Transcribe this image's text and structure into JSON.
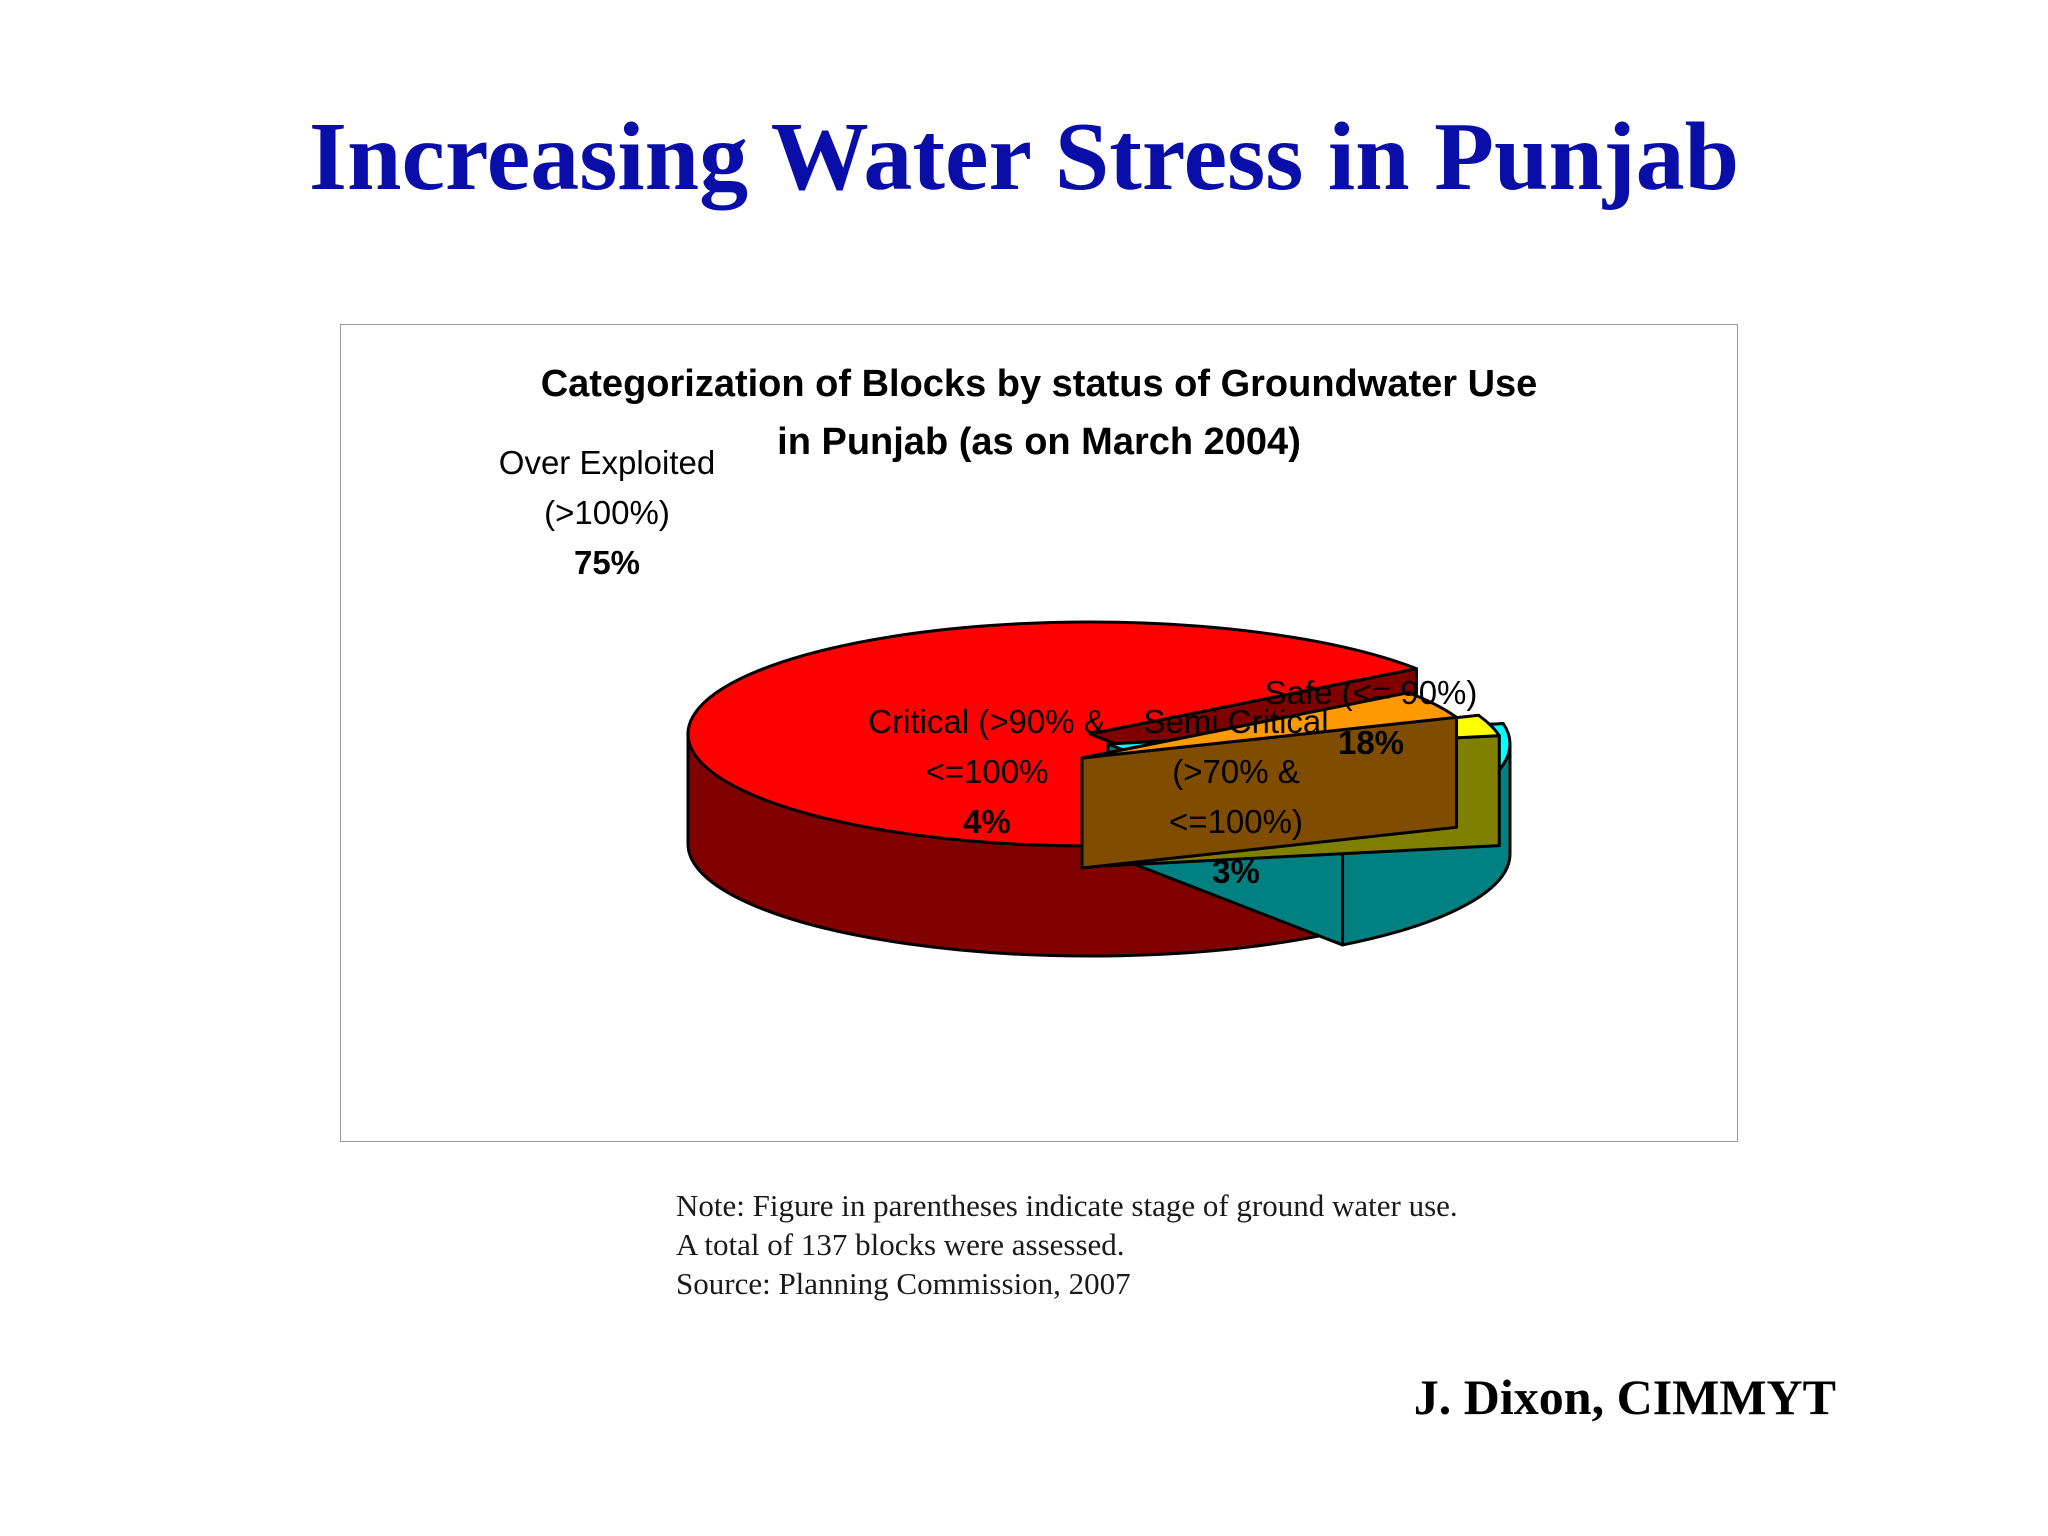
{
  "slide": {
    "title": "Increasing Water Stress in Punjab",
    "notes": [
      "Note: Figure in parentheses indicate stage of ground water use.",
      "A total of 137 blocks were assessed.",
      "Source: Planning Commission, 2007"
    ],
    "author": "J. Dixon, CIMMYT"
  },
  "chart_data": {
    "type": "pie",
    "title_lines": [
      "Categorization of Blocks by status of Groundwater Use",
      "in Punjab (as on March 2004)"
    ],
    "style": "3d-exploded",
    "slices": [
      {
        "label_lines": [
          "Safe (<= 90%)"
        ],
        "value": 18,
        "percent_label": "18%",
        "top_color": "#00ffff",
        "side_color": "#008080"
      },
      {
        "label_lines": [
          "Over Exploited",
          "(>100%)"
        ],
        "value": 75,
        "percent_label": "75%",
        "top_color": "#ff0000",
        "side_color": "#800000"
      },
      {
        "label_lines": [
          "Critical (>90% &",
          "<=100%"
        ],
        "value": 4,
        "percent_label": "4%",
        "top_color": "#ff9900",
        "side_color": "#804c00"
      },
      {
        "label_lines": [
          "Semi Critical",
          "(>70% &",
          "<=100%)"
        ],
        "value": 3,
        "percent_label": "3%",
        "top_color": "#ffff00",
        "side_color": "#808000"
      }
    ]
  }
}
